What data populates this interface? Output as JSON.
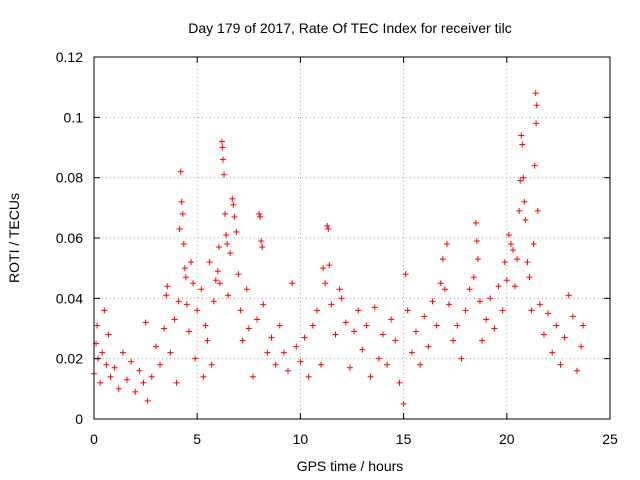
{
  "chart_data": {
    "type": "scatter",
    "title": "Day 179 of 2017, Rate Of TEC Index for receiver tilc",
    "xlabel": "GPS time / hours",
    "ylabel": "ROTI / TECUs",
    "xlim": [
      0,
      25
    ],
    "ylim": [
      0,
      0.12
    ],
    "x_ticks": [
      0,
      5,
      10,
      15,
      20,
      25
    ],
    "x_tick_labels": [
      "0",
      "5",
      "10",
      "15",
      "20",
      "25"
    ],
    "y_ticks": [
      0,
      0.02,
      0.04,
      0.06,
      0.08,
      0.1,
      0.12
    ],
    "y_tick_labels": [
      "0",
      "0.02",
      "0.04",
      "0.06",
      "0.08",
      "0.1",
      "0.12"
    ],
    "grid": true,
    "marker": "plus",
    "color": "#ff0000",
    "series": [
      {
        "name": "ROTI",
        "points": [
          [
            0.0,
            0.015
          ],
          [
            0.1,
            0.025
          ],
          [
            0.15,
            0.031
          ],
          [
            0.2,
            0.02
          ],
          [
            0.3,
            0.012
          ],
          [
            0.4,
            0.022
          ],
          [
            0.5,
            0.036
          ],
          [
            0.6,
            0.018
          ],
          [
            0.7,
            0.028
          ],
          [
            0.8,
            0.014
          ],
          [
            1.0,
            0.017
          ],
          [
            1.2,
            0.01
          ],
          [
            1.4,
            0.022
          ],
          [
            1.6,
            0.013
          ],
          [
            1.8,
            0.019
          ],
          [
            2.0,
            0.009
          ],
          [
            2.2,
            0.016
          ],
          [
            2.4,
            0.012
          ],
          [
            2.5,
            0.032
          ],
          [
            2.6,
            0.006
          ],
          [
            2.8,
            0.014
          ],
          [
            3.0,
            0.024
          ],
          [
            3.2,
            0.018
          ],
          [
            3.4,
            0.03
          ],
          [
            3.5,
            0.041
          ],
          [
            3.55,
            0.044
          ],
          [
            3.7,
            0.022
          ],
          [
            3.9,
            0.033
          ],
          [
            4.0,
            0.012
          ],
          [
            4.1,
            0.039
          ],
          [
            4.15,
            0.063
          ],
          [
            4.2,
            0.082
          ],
          [
            4.25,
            0.072
          ],
          [
            4.3,
            0.068
          ],
          [
            4.35,
            0.058
          ],
          [
            4.4,
            0.05
          ],
          [
            4.45,
            0.047
          ],
          [
            4.5,
            0.038
          ],
          [
            4.6,
            0.029
          ],
          [
            4.7,
            0.052
          ],
          [
            4.8,
            0.045
          ],
          [
            4.9,
            0.02
          ],
          [
            5.0,
            0.036
          ],
          [
            5.2,
            0.043
          ],
          [
            5.3,
            0.014
          ],
          [
            5.4,
            0.031
          ],
          [
            5.5,
            0.026
          ],
          [
            5.6,
            0.052
          ],
          [
            5.7,
            0.018
          ],
          [
            5.8,
            0.039
          ],
          [
            5.9,
            0.046
          ],
          [
            6.0,
            0.049
          ],
          [
            6.05,
            0.057
          ],
          [
            6.1,
            0.045
          ],
          [
            6.2,
            0.092
          ],
          [
            6.22,
            0.09
          ],
          [
            6.25,
            0.086
          ],
          [
            6.3,
            0.081
          ],
          [
            6.35,
            0.068
          ],
          [
            6.4,
            0.061
          ],
          [
            6.45,
            0.058
          ],
          [
            6.5,
            0.041
          ],
          [
            6.6,
            0.055
          ],
          [
            6.7,
            0.073
          ],
          [
            6.75,
            0.071
          ],
          [
            6.8,
            0.067
          ],
          [
            6.9,
            0.062
          ],
          [
            7.0,
            0.048
          ],
          [
            7.1,
            0.036
          ],
          [
            7.2,
            0.026
          ],
          [
            7.4,
            0.043
          ],
          [
            7.5,
            0.03
          ],
          [
            7.7,
            0.014
          ],
          [
            7.9,
            0.033
          ],
          [
            8.0,
            0.068
          ],
          [
            8.05,
            0.067
          ],
          [
            8.1,
            0.059
          ],
          [
            8.15,
            0.057
          ],
          [
            8.2,
            0.038
          ],
          [
            8.4,
            0.022
          ],
          [
            8.6,
            0.027
          ],
          [
            8.8,
            0.018
          ],
          [
            9.0,
            0.031
          ],
          [
            9.2,
            0.022
          ],
          [
            9.4,
            0.016
          ],
          [
            9.6,
            0.045
          ],
          [
            9.8,
            0.024
          ],
          [
            10.0,
            0.019
          ],
          [
            10.2,
            0.027
          ],
          [
            10.4,
            0.014
          ],
          [
            10.6,
            0.031
          ],
          [
            10.8,
            0.036
          ],
          [
            11.0,
            0.018
          ],
          [
            11.1,
            0.05
          ],
          [
            11.2,
            0.045
          ],
          [
            11.3,
            0.064
          ],
          [
            11.35,
            0.063
          ],
          [
            11.4,
            0.051
          ],
          [
            11.5,
            0.038
          ],
          [
            11.7,
            0.028
          ],
          [
            11.9,
            0.043
          ],
          [
            12.0,
            0.04
          ],
          [
            12.2,
            0.032
          ],
          [
            12.4,
            0.017
          ],
          [
            12.6,
            0.029
          ],
          [
            12.8,
            0.036
          ],
          [
            13.0,
            0.023
          ],
          [
            13.2,
            0.031
          ],
          [
            13.4,
            0.014
          ],
          [
            13.6,
            0.037
          ],
          [
            13.8,
            0.02
          ],
          [
            14.0,
            0.028
          ],
          [
            14.2,
            0.018
          ],
          [
            14.4,
            0.033
          ],
          [
            14.6,
            0.026
          ],
          [
            14.8,
            0.012
          ],
          [
            15.0,
            0.005
          ],
          [
            15.1,
            0.048
          ],
          [
            15.2,
            0.036
          ],
          [
            15.4,
            0.022
          ],
          [
            15.6,
            0.029
          ],
          [
            15.8,
            0.018
          ],
          [
            16.0,
            0.034
          ],
          [
            16.2,
            0.024
          ],
          [
            16.4,
            0.039
          ],
          [
            16.6,
            0.031
          ],
          [
            16.8,
            0.045
          ],
          [
            16.9,
            0.053
          ],
          [
            17.0,
            0.043
          ],
          [
            17.1,
            0.058
          ],
          [
            17.2,
            0.038
          ],
          [
            17.4,
            0.026
          ],
          [
            17.6,
            0.031
          ],
          [
            17.8,
            0.02
          ],
          [
            18.0,
            0.036
          ],
          [
            18.2,
            0.043
          ],
          [
            18.4,
            0.047
          ],
          [
            18.5,
            0.065
          ],
          [
            18.55,
            0.059
          ],
          [
            18.6,
            0.053
          ],
          [
            18.7,
            0.039
          ],
          [
            18.8,
            0.026
          ],
          [
            19.0,
            0.033
          ],
          [
            19.2,
            0.04
          ],
          [
            19.4,
            0.03
          ],
          [
            19.6,
            0.044
          ],
          [
            19.8,
            0.036
          ],
          [
            19.9,
            0.052
          ],
          [
            20.0,
            0.046
          ],
          [
            20.1,
            0.061
          ],
          [
            20.2,
            0.058
          ],
          [
            20.3,
            0.056
          ],
          [
            20.4,
            0.044
          ],
          [
            20.5,
            0.053
          ],
          [
            20.6,
            0.069
          ],
          [
            20.65,
            0.079
          ],
          [
            20.7,
            0.094
          ],
          [
            20.75,
            0.091
          ],
          [
            20.8,
            0.08
          ],
          [
            20.85,
            0.072
          ],
          [
            20.9,
            0.066
          ],
          [
            21.0,
            0.052
          ],
          [
            21.1,
            0.047
          ],
          [
            21.2,
            0.036
          ],
          [
            21.3,
            0.058
          ],
          [
            21.35,
            0.084
          ],
          [
            21.4,
            0.108
          ],
          [
            21.42,
            0.098
          ],
          [
            21.45,
            0.104
          ],
          [
            21.5,
            0.069
          ],
          [
            21.6,
            0.038
          ],
          [
            21.8,
            0.028
          ],
          [
            22.0,
            0.035
          ],
          [
            22.2,
            0.022
          ],
          [
            22.4,
            0.031
          ],
          [
            22.6,
            0.018
          ],
          [
            22.8,
            0.027
          ],
          [
            23.0,
            0.041
          ],
          [
            23.2,
            0.034
          ],
          [
            23.4,
            0.016
          ],
          [
            23.6,
            0.024
          ],
          [
            23.7,
            0.031
          ]
        ]
      }
    ]
  }
}
